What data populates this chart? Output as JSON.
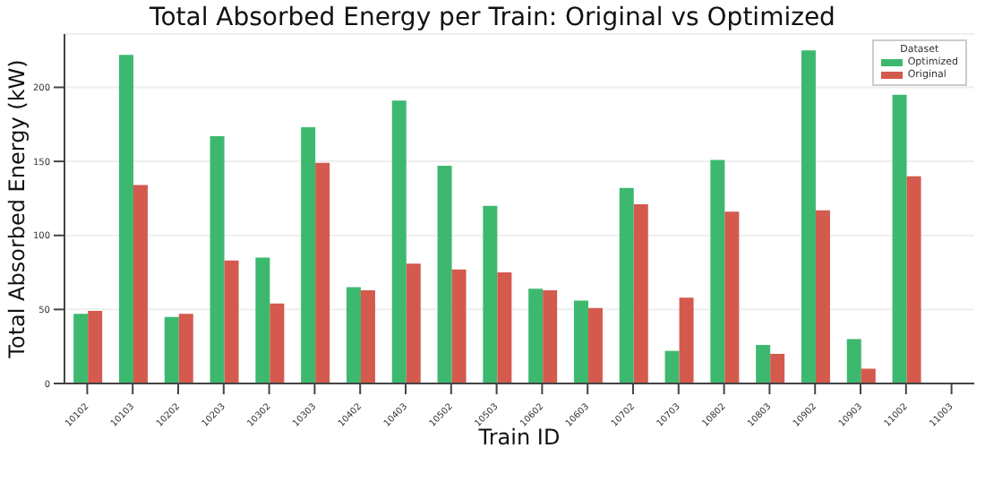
{
  "chart_data": {
    "type": "bar",
    "title": "Total Absorbed Energy per Train: Original vs Optimized",
    "xlabel": "Train ID",
    "ylabel": "Total Absorbed Energy (kW)",
    "legend_title": "Dataset",
    "categories": [
      "10102",
      "10103",
      "10202",
      "10203",
      "10302",
      "10303",
      "10402",
      "10403",
      "10502",
      "10503",
      "10602",
      "10603",
      "10702",
      "10703",
      "10802",
      "10803",
      "10902",
      "10903",
      "11002",
      "11003"
    ],
    "series": [
      {
        "name": "Optimized",
        "color": "#3cb96f",
        "values": [
          47,
          222,
          45,
          167,
          85,
          173,
          65,
          191,
          147,
          120,
          64,
          56,
          132,
          22,
          151,
          26,
          225,
          30,
          195,
          null
        ]
      },
      {
        "name": "Original",
        "color": "#d45a4e",
        "values": [
          49,
          134,
          47,
          83,
          54,
          149,
          63,
          81,
          77,
          75,
          63,
          51,
          121,
          58,
          116,
          20,
          117,
          10,
          140,
          null
        ]
      }
    ],
    "ylim": [
      0,
      236
    ],
    "yticks": [
      0,
      50,
      100,
      150,
      200
    ],
    "grid": "y",
    "legend": "top right"
  }
}
